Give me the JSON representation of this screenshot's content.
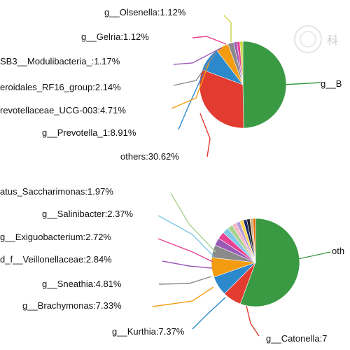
{
  "chart_data": [
    {
      "type": "pie",
      "slices": [
        {
          "label": "g__B",
          "value": 49.25,
          "color": "#3a9a43"
        },
        {
          "label": "others:30.62%",
          "value": 30.62,
          "color": "#e23b2f"
        },
        {
          "label": "g__Prevotella_1:8.91%",
          "value": 8.91,
          "color": "#2c89cc"
        },
        {
          "label": "revotellaceae_UCG-003:4.71%",
          "value": 4.71,
          "color": "#f39c12"
        },
        {
          "label": "eroidales_RF16_group:2.14%",
          "value": 2.14,
          "color": "#8a8a8a"
        },
        {
          "label": "SB3__Modulibacteria_:1.17%",
          "value": 1.17,
          "color": "#9b59b6"
        },
        {
          "label": "g__Gelria:1.12%",
          "value": 1.12,
          "color": "#e84393"
        },
        {
          "label": "g__Olsenella:1.12%",
          "value": 1.12,
          "color": "#c8d640"
        }
      ]
    },
    {
      "type": "pie",
      "slices": [
        {
          "label": "oth",
          "value": 57.0,
          "color": "#3a9a43"
        },
        {
          "label": "g__Catonella:7",
          "value": 7.0,
          "color": "#e23b2f"
        },
        {
          "label": "g__Kurthia:7.37%",
          "value": 7.37,
          "color": "#2c89cc"
        },
        {
          "label": "g__Brachymonas:7.33%",
          "value": 7.33,
          "color": "#f39c12"
        },
        {
          "label": "g__Sneathia:4.81%",
          "value": 4.81,
          "color": "#8a8a8a"
        },
        {
          "label": "d_f__Veillonellaceae:2.84%",
          "value": 2.84,
          "color": "#9b59b6"
        },
        {
          "label": "g__Exiguobacterium:2.72%",
          "value": 2.72,
          "color": "#e84393"
        },
        {
          "label": "g__Salinibacter:2.37%",
          "value": 2.37,
          "color": "#7fc8e8"
        },
        {
          "label": "atus_Saccharimonas:1.97%",
          "value": 1.97,
          "color": "#a9d18e"
        },
        {
          "label": "",
          "value": 1.6,
          "color": "#f4b6c2"
        },
        {
          "label": "",
          "value": 1.5,
          "color": "#b39ddb"
        },
        {
          "label": "",
          "value": 1.4,
          "color": "#ffd54f"
        },
        {
          "label": "",
          "value": 1.3,
          "color": "#1b2a6b"
        },
        {
          "label": "",
          "value": 1.2,
          "color": "#222222"
        },
        {
          "label": "",
          "value": 1.1,
          "color": "#d4b483"
        },
        {
          "label": "",
          "value": 0.99,
          "color": "#ef6c00"
        }
      ]
    }
  ],
  "watermark_text": "科"
}
